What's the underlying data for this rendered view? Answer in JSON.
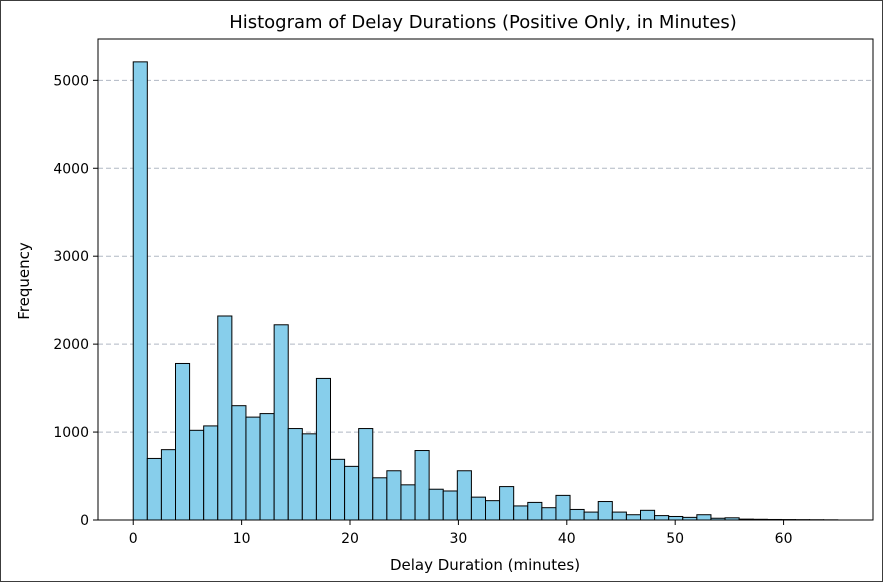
{
  "chart_data": {
    "type": "bar",
    "title": "Histogram of Delay Durations (Positive Only, in Minutes)",
    "xlabel": "Delay Duration (minutes)",
    "ylabel": "Frequency",
    "bins": {
      "start": 0,
      "width": 1.3,
      "count": 50
    },
    "values": [
      5210,
      700,
      800,
      1780,
      1020,
      1070,
      2320,
      1300,
      1170,
      1210,
      2220,
      1040,
      980,
      1610,
      690,
      610,
      1040,
      480,
      560,
      400,
      790,
      350,
      330,
      560,
      260,
      220,
      380,
      160,
      200,
      140,
      280,
      120,
      90,
      210,
      90,
      60,
      110,
      50,
      40,
      30,
      60,
      20,
      25,
      10,
      8,
      6,
      5,
      4,
      3,
      2
    ],
    "xticks": [
      0,
      10,
      20,
      30,
      40,
      50,
      60
    ],
    "yticks": [
      0,
      1000,
      2000,
      3000,
      4000,
      5000
    ],
    "xlim": [
      -3.25,
      68.25
    ],
    "ylim": [
      0,
      5470
    ],
    "grid": "y-dashed",
    "bar_color": "#87CEEB",
    "edge_color": "#000000",
    "grid_color": "#b0b8c4"
  }
}
